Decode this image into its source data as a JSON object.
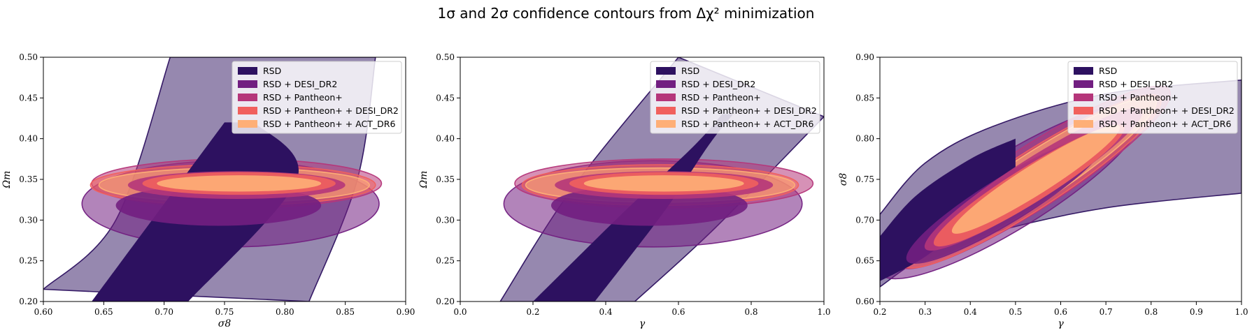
{
  "figure": {
    "title": "1σ and 2σ confidence contours from Δχ² minimization"
  },
  "colors": {
    "RSD": "#2d1160",
    "RSD + DESI_DR2": "#721f81",
    "RSD + Pantheon+": "#b5367a",
    "RSD + Pantheon+ + DESI_DR2": "#f1605d",
    "RSD + Pantheon+ + ACT_DR6": "#feaf77"
  },
  "chart_data": [
    {
      "type": "contour",
      "xlabel": "σ8",
      "ylabel": "Ωm",
      "xlim": [
        0.6,
        0.9
      ],
      "ylim": [
        0.2,
        0.5
      ],
      "xticks": [
        "0.60",
        "0.65",
        "0.70",
        "0.75",
        "0.80",
        "0.85",
        "0.90"
      ],
      "yticks": [
        "0.20",
        "0.25",
        "0.30",
        "0.35",
        "0.40",
        "0.45",
        "0.50"
      ],
      "legend_position": "top-right",
      "series": [
        {
          "name": "RSD",
          "shape": "band",
          "sigma1": {
            "left": [
              [
                0.64,
                0.2
              ],
              [
                0.715,
                0.35
              ],
              [
                0.75,
                0.42
              ]
            ],
            "right": [
              [
                0.775,
                0.42
              ],
              [
                0.81,
                0.35
              ],
              [
                0.72,
                0.2
              ]
            ]
          },
          "sigma2": {
            "left": [
              [
                0.6,
                0.215
              ],
              [
                0.66,
                0.3
              ],
              [
                0.705,
                0.5
              ]
            ],
            "right": [
              [
                0.875,
                0.5
              ],
              [
                0.86,
                0.35
              ],
              [
                0.82,
                0.2
              ]
            ]
          }
        },
        {
          "name": "RSD + DESI_DR2",
          "shape": "ellipse",
          "sigma1": {
            "cx": 0.745,
            "cy": 0.318,
            "rx": 0.085,
            "ry": 0.025
          },
          "sigma2": {
            "cx": 0.755,
            "cy": 0.32,
            "rx": 0.123,
            "ry": 0.053
          }
        },
        {
          "name": "RSD + Pantheon+",
          "shape": "ellipse",
          "sigma1": {
            "cx": 0.76,
            "cy": 0.343,
            "rx": 0.09,
            "ry": 0.017
          },
          "sigma2": {
            "cx": 0.76,
            "cy": 0.345,
            "rx": 0.12,
            "ry": 0.03
          }
        },
        {
          "name": "RSD + Pantheon+ + DESI_DR2",
          "shape": "ellipse",
          "sigma1": {
            "cx": 0.762,
            "cy": 0.345,
            "rx": 0.08,
            "ry": 0.014
          },
          "sigma2": {
            "cx": 0.757,
            "cy": 0.343,
            "rx": 0.118,
            "ry": 0.025
          }
        },
        {
          "name": "RSD + Pantheon+ + ACT_DR6",
          "shape": "ellipse",
          "sigma1": {
            "cx": 0.762,
            "cy": 0.345,
            "rx": 0.068,
            "ry": 0.01
          },
          "sigma2": {
            "cx": 0.758,
            "cy": 0.343,
            "rx": 0.112,
            "ry": 0.021
          }
        }
      ]
    },
    {
      "type": "contour",
      "xlabel": "γ",
      "ylabel": "Ωm",
      "xlim": [
        0.0,
        1.0
      ],
      "ylim": [
        0.2,
        0.5
      ],
      "xticks": [
        "0.0",
        "0.2",
        "0.4",
        "0.6",
        "0.8",
        "1.0"
      ],
      "yticks": [
        "0.20",
        "0.25",
        "0.30",
        "0.35",
        "0.40",
        "0.45",
        "0.50"
      ],
      "legend_position": "top-right",
      "series": [
        {
          "name": "RSD",
          "shape": "band",
          "sigma1": {
            "left": [
              [
                0.2,
                0.2
              ],
              [
                0.45,
                0.31
              ],
              [
                0.64,
                0.39
              ],
              [
                0.72,
                0.43
              ]
            ],
            "right": [
              [
                0.75,
                0.43
              ],
              [
                0.68,
                0.39
              ],
              [
                0.56,
                0.31
              ],
              [
                0.37,
                0.2
              ]
            ]
          },
          "sigma2": {
            "left": [
              [
                0.11,
                0.2
              ],
              [
                0.31,
                0.34
              ],
              [
                0.6,
                0.5
              ]
            ],
            "right": [
              [
                1.0,
                0.427
              ],
              [
                0.7,
                0.29
              ],
              [
                0.48,
                0.2
              ]
            ]
          }
        },
        {
          "name": "RSD + DESI_DR2",
          "shape": "ellipse",
          "sigma1": {
            "cx": 0.52,
            "cy": 0.318,
            "rx": 0.27,
            "ry": 0.025
          },
          "sigma2": {
            "cx": 0.53,
            "cy": 0.32,
            "rx": 0.41,
            "ry": 0.053
          }
        },
        {
          "name": "RSD + Pantheon+",
          "shape": "ellipse",
          "sigma1": {
            "cx": 0.56,
            "cy": 0.343,
            "rx": 0.3,
            "ry": 0.017
          },
          "sigma2": {
            "cx": 0.56,
            "cy": 0.345,
            "rx": 0.41,
            "ry": 0.03
          }
        },
        {
          "name": "RSD + Pantheon+ + DESI_DR2",
          "shape": "ellipse",
          "sigma1": {
            "cx": 0.56,
            "cy": 0.345,
            "rx": 0.26,
            "ry": 0.014
          },
          "sigma2": {
            "cx": 0.55,
            "cy": 0.343,
            "rx": 0.38,
            "ry": 0.025
          }
        },
        {
          "name": "RSD + Pantheon+ + ACT_DR6",
          "shape": "ellipse",
          "sigma1": {
            "cx": 0.56,
            "cy": 0.345,
            "rx": 0.22,
            "ry": 0.01
          },
          "sigma2": {
            "cx": 0.55,
            "cy": 0.343,
            "rx": 0.37,
            "ry": 0.021
          }
        }
      ]
    },
    {
      "type": "contour",
      "xlabel": "γ",
      "ylabel": "σ8",
      "xlim": [
        0.2,
        1.0
      ],
      "ylim": [
        0.6,
        0.9
      ],
      "xticks": [
        "0.2",
        "0.3",
        "0.4",
        "0.5",
        "0.6",
        "0.7",
        "0.8",
        "0.9",
        "1.0"
      ],
      "yticks": [
        "0.60",
        "0.65",
        "0.70",
        "0.75",
        "0.80",
        "0.85",
        "0.90"
      ],
      "legend_position": "top-right",
      "series": [
        {
          "name": "RSD",
          "shape": "band",
          "sigma1": {
            "left": [
              [
                0.2,
                0.68
              ],
              [
                0.28,
                0.73
              ],
              [
                0.4,
                0.775
              ],
              [
                0.5,
                0.8
              ]
            ],
            "right": [
              [
                0.5,
                0.755
              ],
              [
                0.4,
                0.7
              ],
              [
                0.3,
                0.655
              ],
              [
                0.2,
                0.625
              ]
            ]
          },
          "sigma2": {
            "left": [
              [
                0.2,
                0.707
              ],
              [
                0.3,
                0.77
              ],
              [
                0.45,
                0.815
              ],
              [
                0.7,
                0.855
              ],
              [
                1.0,
                0.872
              ]
            ],
            "right": [
              [
                1.0,
                0.733
              ],
              [
                0.7,
                0.715
              ],
              [
                0.45,
                0.685
              ],
              [
                0.3,
                0.655
              ],
              [
                0.2,
                0.618
              ]
            ]
          }
        },
        {
          "name": "RSD + DESI_DR2",
          "shape": "diag",
          "sigma1": {
            "a": [
              0.26,
              0.65
            ],
            "b": [
              0.7,
              0.8
            ],
            "w": 0.028
          },
          "sigma2": {
            "a": [
              0.2,
              0.635
            ],
            "b": [
              0.78,
              0.835
            ],
            "w": 0.045
          }
        },
        {
          "name": "RSD + Pantheon+",
          "shape": "diag",
          "sigma1": {
            "a": [
              0.3,
              0.665
            ],
            "b": [
              0.78,
              0.835
            ],
            "w": 0.025
          },
          "sigma2": {
            "a": [
              0.24,
              0.645
            ],
            "b": [
              0.84,
              0.86
            ],
            "w": 0.038
          }
        },
        {
          "name": "RSD + Pantheon+ + DESI_DR2",
          "shape": "diag",
          "sigma1": {
            "a": [
              0.32,
              0.67
            ],
            "b": [
              0.74,
              0.815
            ],
            "w": 0.022
          },
          "sigma2": {
            "a": [
              0.25,
              0.645
            ],
            "b": [
              0.82,
              0.85
            ],
            "w": 0.034
          }
        },
        {
          "name": "RSD + Pantheon+ + ACT_DR6",
          "shape": "diag",
          "sigma1": {
            "a": [
              0.36,
              0.685
            ],
            "b": [
              0.73,
              0.815
            ],
            "w": 0.018
          },
          "sigma2": {
            "a": [
              0.26,
              0.65
            ],
            "b": [
              0.81,
              0.848
            ],
            "w": 0.03
          }
        }
      ]
    }
  ]
}
